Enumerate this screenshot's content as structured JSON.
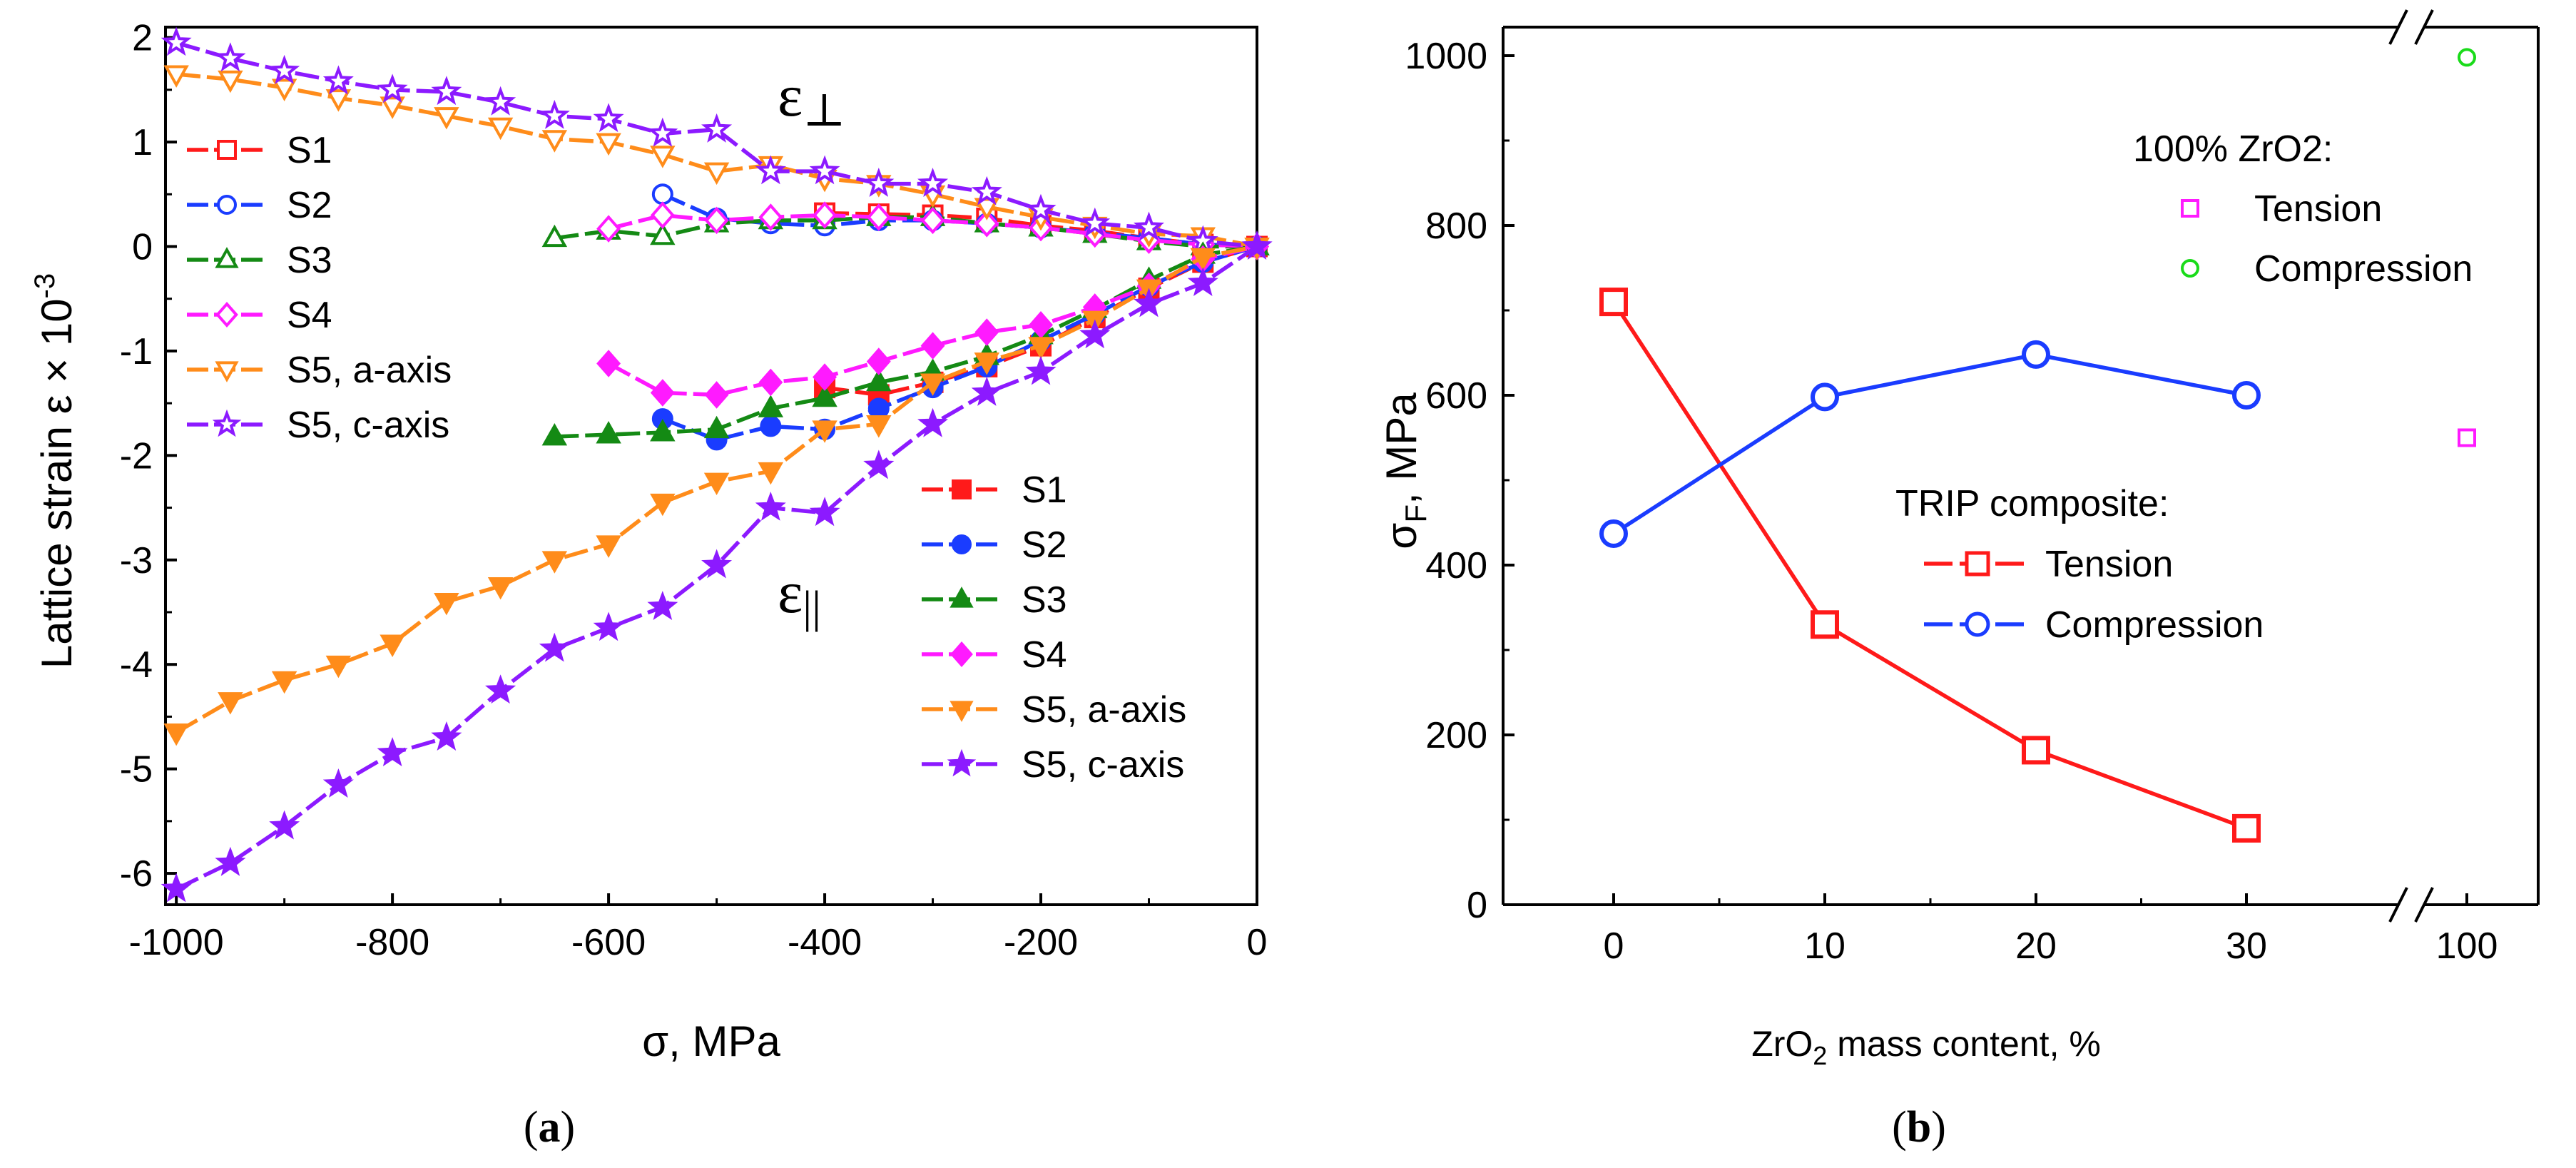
{
  "figure": {
    "caption_a": "(a)",
    "caption_b": "(b)"
  },
  "chart_data": [
    {
      "id": "a",
      "type": "line",
      "title": "",
      "xlabel": "σ, MPa",
      "ylabel": "Lattice strain ε × 10",
      "ylabel_exp": "-3",
      "xlim": [
        -1010,
        0
      ],
      "ylim": [
        -6.3,
        2.1
      ],
      "xticks": [
        -1000,
        -800,
        -600,
        -400,
        -200,
        0
      ],
      "yticks": [
        2,
        1,
        0,
        -1,
        -2,
        -3,
        -4,
        -5,
        -6
      ],
      "xtick_labels": [
        "-1000",
        "-800",
        "-600",
        "-400",
        "-200",
        "0"
      ],
      "ytick_labels": [
        "2",
        "1",
        "0",
        "-1",
        "-2",
        "-3",
        "-4",
        "-5",
        "-6"
      ],
      "annotations": [
        {
          "text": "ε",
          "sub": "⊥",
          "at": [
            -430,
            1.65
          ]
        },
        {
          "text": "ε",
          "sub": "||",
          "at": [
            -430,
            -4.1
          ]
        }
      ],
      "legends": [
        {
          "placement": "upper-left",
          "entries": [
            "S1",
            "S2",
            "S3",
            "S4",
            "S5, a-axis",
            "S5, c-axis"
          ]
        },
        {
          "placement": "lower-right",
          "entries": [
            "S1",
            "S2",
            "S3",
            "S4",
            "S5, a-axis",
            "S5, c-axis"
          ]
        }
      ],
      "series": [
        {
          "name": "S1",
          "group": "perp",
          "color": "#ff1a1a",
          "marker": "square",
          "filled": false,
          "x": [
            -400,
            -350,
            -300,
            -250,
            -200,
            -150,
            -100,
            -50,
            0
          ],
          "y": [
            0.32,
            0.31,
            0.3,
            0.27,
            0.2,
            0.15,
            0.08,
            0.02,
            0
          ]
        },
        {
          "name": "S2",
          "group": "perp",
          "color": "#1a3cff",
          "marker": "circle",
          "filled": false,
          "x": [
            -550,
            -500,
            -450,
            -400,
            -350,
            -300,
            -250,
            -200,
            -150,
            -100,
            -50,
            0
          ],
          "y": [
            0.5,
            0.27,
            0.22,
            0.2,
            0.25,
            0.25,
            0.22,
            0.18,
            0.13,
            0.08,
            0.02,
            0
          ]
        },
        {
          "name": "S3",
          "group": "perp",
          "color": "#148a14",
          "marker": "triangle-up",
          "filled": false,
          "x": [
            -650,
            -600,
            -550,
            -500,
            -450,
            -400,
            -350,
            -300,
            -250,
            -200,
            -150,
            -100,
            -50,
            0
          ],
          "y": [
            0.08,
            0.15,
            0.1,
            0.22,
            0.25,
            0.25,
            0.28,
            0.28,
            0.22,
            0.18,
            0.12,
            0.05,
            0.0,
            0
          ]
        },
        {
          "name": "S4",
          "group": "perp",
          "color": "#ff1aff",
          "marker": "diamond",
          "filled": false,
          "x": [
            -600,
            -550,
            -500,
            -450,
            -400,
            -350,
            -300,
            -250,
            -200,
            -150,
            -100,
            -50,
            0
          ],
          "y": [
            0.17,
            0.3,
            0.25,
            0.28,
            0.3,
            0.28,
            0.25,
            0.22,
            0.18,
            0.12,
            0.06,
            0.02,
            0
          ]
        },
        {
          "name": "S5, a-axis",
          "group": "perp",
          "color": "#ff8c1a",
          "marker": "triangle-down",
          "filled": false,
          "x": [
            -1000,
            -950,
            -900,
            -850,
            -800,
            -750,
            -700,
            -650,
            -600,
            -550,
            -500,
            -450,
            -400,
            -350,
            -300,
            -250,
            -200,
            -150,
            -100,
            -50,
            0
          ],
          "y": [
            1.65,
            1.6,
            1.52,
            1.42,
            1.35,
            1.25,
            1.15,
            1.03,
            1.0,
            0.88,
            0.72,
            0.78,
            0.65,
            0.6,
            0.5,
            0.38,
            0.28,
            0.2,
            0.12,
            0.1,
            0
          ]
        },
        {
          "name": "S5, c-axis",
          "group": "perp",
          "color": "#8c1aff",
          "marker": "star",
          "filled": false,
          "x": [
            -1000,
            -950,
            -900,
            -850,
            -800,
            -750,
            -700,
            -650,
            -600,
            -550,
            -500,
            -450,
            -400,
            -350,
            -300,
            -250,
            -200,
            -150,
            -100,
            -50,
            0
          ],
          "y": [
            1.95,
            1.8,
            1.68,
            1.58,
            1.5,
            1.48,
            1.38,
            1.25,
            1.22,
            1.08,
            1.12,
            0.72,
            0.72,
            0.6,
            0.6,
            0.52,
            0.35,
            0.22,
            0.18,
            0.05,
            0
          ]
        },
        {
          "name": "S1",
          "group": "par",
          "color": "#ff1a1a",
          "marker": "square",
          "filled": true,
          "x": [
            -400,
            -350,
            -300,
            -250,
            -200,
            -150,
            -100,
            -50,
            0
          ],
          "y": [
            -1.35,
            -1.42,
            -1.3,
            -1.15,
            -0.95,
            -0.68,
            -0.4,
            -0.15,
            0
          ]
        },
        {
          "name": "S2",
          "group": "par",
          "color": "#1a3cff",
          "marker": "circle",
          "filled": true,
          "x": [
            -550,
            -500,
            -450,
            -400,
            -350,
            -300,
            -250,
            -200,
            -150,
            -100,
            -50,
            0
          ],
          "y": [
            -1.65,
            -1.85,
            -1.72,
            -1.75,
            -1.55,
            -1.35,
            -1.15,
            -0.9,
            -0.65,
            -0.38,
            -0.15,
            0
          ]
        },
        {
          "name": "S3",
          "group": "par",
          "color": "#148a14",
          "marker": "triangle-up",
          "filled": true,
          "x": [
            -650,
            -600,
            -550,
            -500,
            -450,
            -400,
            -350,
            -300,
            -250,
            -200,
            -150,
            -100,
            -50,
            0
          ],
          "y": [
            -1.82,
            -1.8,
            -1.78,
            -1.75,
            -1.55,
            -1.45,
            -1.3,
            -1.2,
            -1.05,
            -0.85,
            -0.6,
            -0.32,
            -0.08,
            0
          ]
        },
        {
          "name": "S4",
          "group": "par",
          "color": "#ff1aff",
          "marker": "diamond",
          "filled": true,
          "x": [
            -600,
            -550,
            -500,
            -450,
            -400,
            -350,
            -300,
            -250,
            -200,
            -150,
            -100,
            -50,
            0
          ],
          "y": [
            -1.12,
            -1.4,
            -1.42,
            -1.3,
            -1.25,
            -1.1,
            -0.95,
            -0.82,
            -0.75,
            -0.58,
            -0.38,
            -0.12,
            0
          ]
        },
        {
          "name": "S5, a-axis",
          "group": "par",
          "color": "#ff8c1a",
          "marker": "triangle-down",
          "filled": true,
          "x": [
            -1000,
            -950,
            -900,
            -850,
            -800,
            -750,
            -700,
            -650,
            -600,
            -550,
            -500,
            -450,
            -400,
            -350,
            -300,
            -250,
            -200,
            -150,
            -100,
            -50,
            0
          ],
          "y": [
            -4.65,
            -4.35,
            -4.15,
            -4.0,
            -3.8,
            -3.4,
            -3.25,
            -3.0,
            -2.85,
            -2.45,
            -2.25,
            -2.15,
            -1.75,
            -1.7,
            -1.3,
            -1.1,
            -0.95,
            -0.7,
            -0.4,
            -0.1,
            0
          ]
        },
        {
          "name": "S5, c-axis",
          "group": "par",
          "color": "#8c1aff",
          "marker": "star",
          "filled": true,
          "x": [
            -1000,
            -950,
            -900,
            -850,
            -800,
            -750,
            -700,
            -650,
            -600,
            -550,
            -500,
            -450,
            -400,
            -350,
            -300,
            -250,
            -200,
            -150,
            -100,
            -50,
            0
          ],
          "y": [
            -6.15,
            -5.9,
            -5.55,
            -5.15,
            -4.85,
            -4.7,
            -4.25,
            -3.85,
            -3.65,
            -3.45,
            -3.05,
            -2.5,
            -2.55,
            -2.1,
            -1.7,
            -1.4,
            -1.2,
            -0.85,
            -0.55,
            -0.35,
            0
          ]
        }
      ]
    },
    {
      "id": "b",
      "type": "line",
      "title": "",
      "xlabel": "ZrO",
      "xlabel_sub": "2",
      "xlabel_rest": " mass content, %",
      "ylabel": "σ",
      "ylabel_sub": "F",
      "ylabel_rest": ", MPa",
      "x_axis_break": "between 30 and 100",
      "xticks": [
        0,
        10,
        20,
        30,
        100
      ],
      "xtick_labels": [
        "0",
        "10",
        "20",
        "30",
        "100"
      ],
      "ylim": [
        0,
        1000
      ],
      "yticks": [
        0,
        200,
        400,
        600,
        800,
        1000
      ],
      "ytick_labels": [
        "0",
        "200",
        "400",
        "600",
        "800",
        "1000"
      ],
      "legends": [
        {
          "placement": "upper-right",
          "title": "100% ZrO2:",
          "entries": [
            "Tension",
            "Compression"
          ]
        },
        {
          "placement": "center-right",
          "title": "TRIP composite:",
          "entries": [
            "Tension",
            "Compression"
          ]
        }
      ],
      "series": [
        {
          "name": "Tension",
          "group": "trip",
          "color": "#ff1a1a",
          "marker": "square",
          "line": true,
          "x": [
            0,
            10,
            20,
            30
          ],
          "y": [
            710,
            330,
            182,
            90
          ]
        },
        {
          "name": "Compression",
          "group": "trip",
          "color": "#1a3cff",
          "marker": "circle",
          "line": true,
          "x": [
            0,
            10,
            20,
            30
          ],
          "y": [
            437,
            598,
            648,
            600
          ]
        },
        {
          "name": "Tension",
          "group": "zro2",
          "color": "#ff1aff",
          "marker": "square",
          "line": false,
          "x": [
            100
          ],
          "y": [
            550
          ]
        },
        {
          "name": "Compression",
          "group": "zro2",
          "color": "#1adb1a",
          "marker": "circle",
          "line": false,
          "x": [
            100
          ],
          "y": [
            998
          ]
        }
      ]
    }
  ]
}
